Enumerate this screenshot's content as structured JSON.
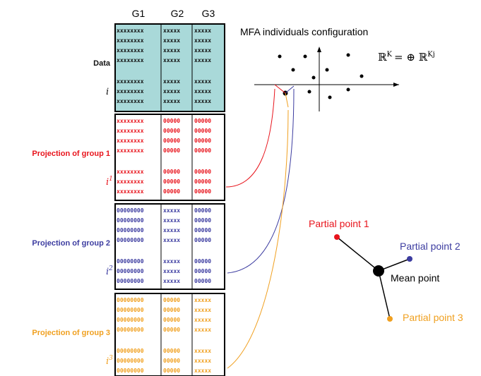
{
  "headers": [
    "G1",
    "G2",
    "G3"
  ],
  "blocks": [
    {
      "label": "Data",
      "index": {
        "base": "i",
        "sup": null
      },
      "color": "#111111",
      "fill": "#a9d9d9",
      "cells": [
        "xxxxxxxx",
        "xxxxx",
        "xxxxx"
      ]
    },
    {
      "label": "Projection of group 1",
      "index": {
        "base": "i",
        "sup": "1"
      },
      "color": "#e8141c",
      "fill": "#ffffff",
      "cells": [
        "xxxxxxxx",
        "00000",
        "00000"
      ]
    },
    {
      "label": "Projection of group 2",
      "index": {
        "base": "i",
        "sup": "2"
      },
      "color": "#3c3ca0",
      "fill": "#ffffff",
      "cells": [
        "00000000",
        "xxxxx",
        "00000"
      ]
    },
    {
      "label": "Projection of group 3",
      "index": {
        "base": "i",
        "sup": "3"
      },
      "color": "#f0a020",
      "fill": "#ffffff",
      "cells": [
        "00000000",
        "00000",
        "xxxxx"
      ]
    }
  ],
  "scatter_title": "MFA individuals configuration",
  "formula": {
    "left": "ℝ",
    "left_sup": "K",
    "middle": "= ⊕ ℝ",
    "right_sup": "Kj"
  },
  "points": [
    {
      "label": "Partial point 1",
      "color": "#e8141c"
    },
    {
      "label": "Partial point 2",
      "color": "#3c3ca0"
    },
    {
      "label": "Mean point",
      "color": "#000000"
    },
    {
      "label": "Partial point 3",
      "color": "#f0a020"
    }
  ]
}
